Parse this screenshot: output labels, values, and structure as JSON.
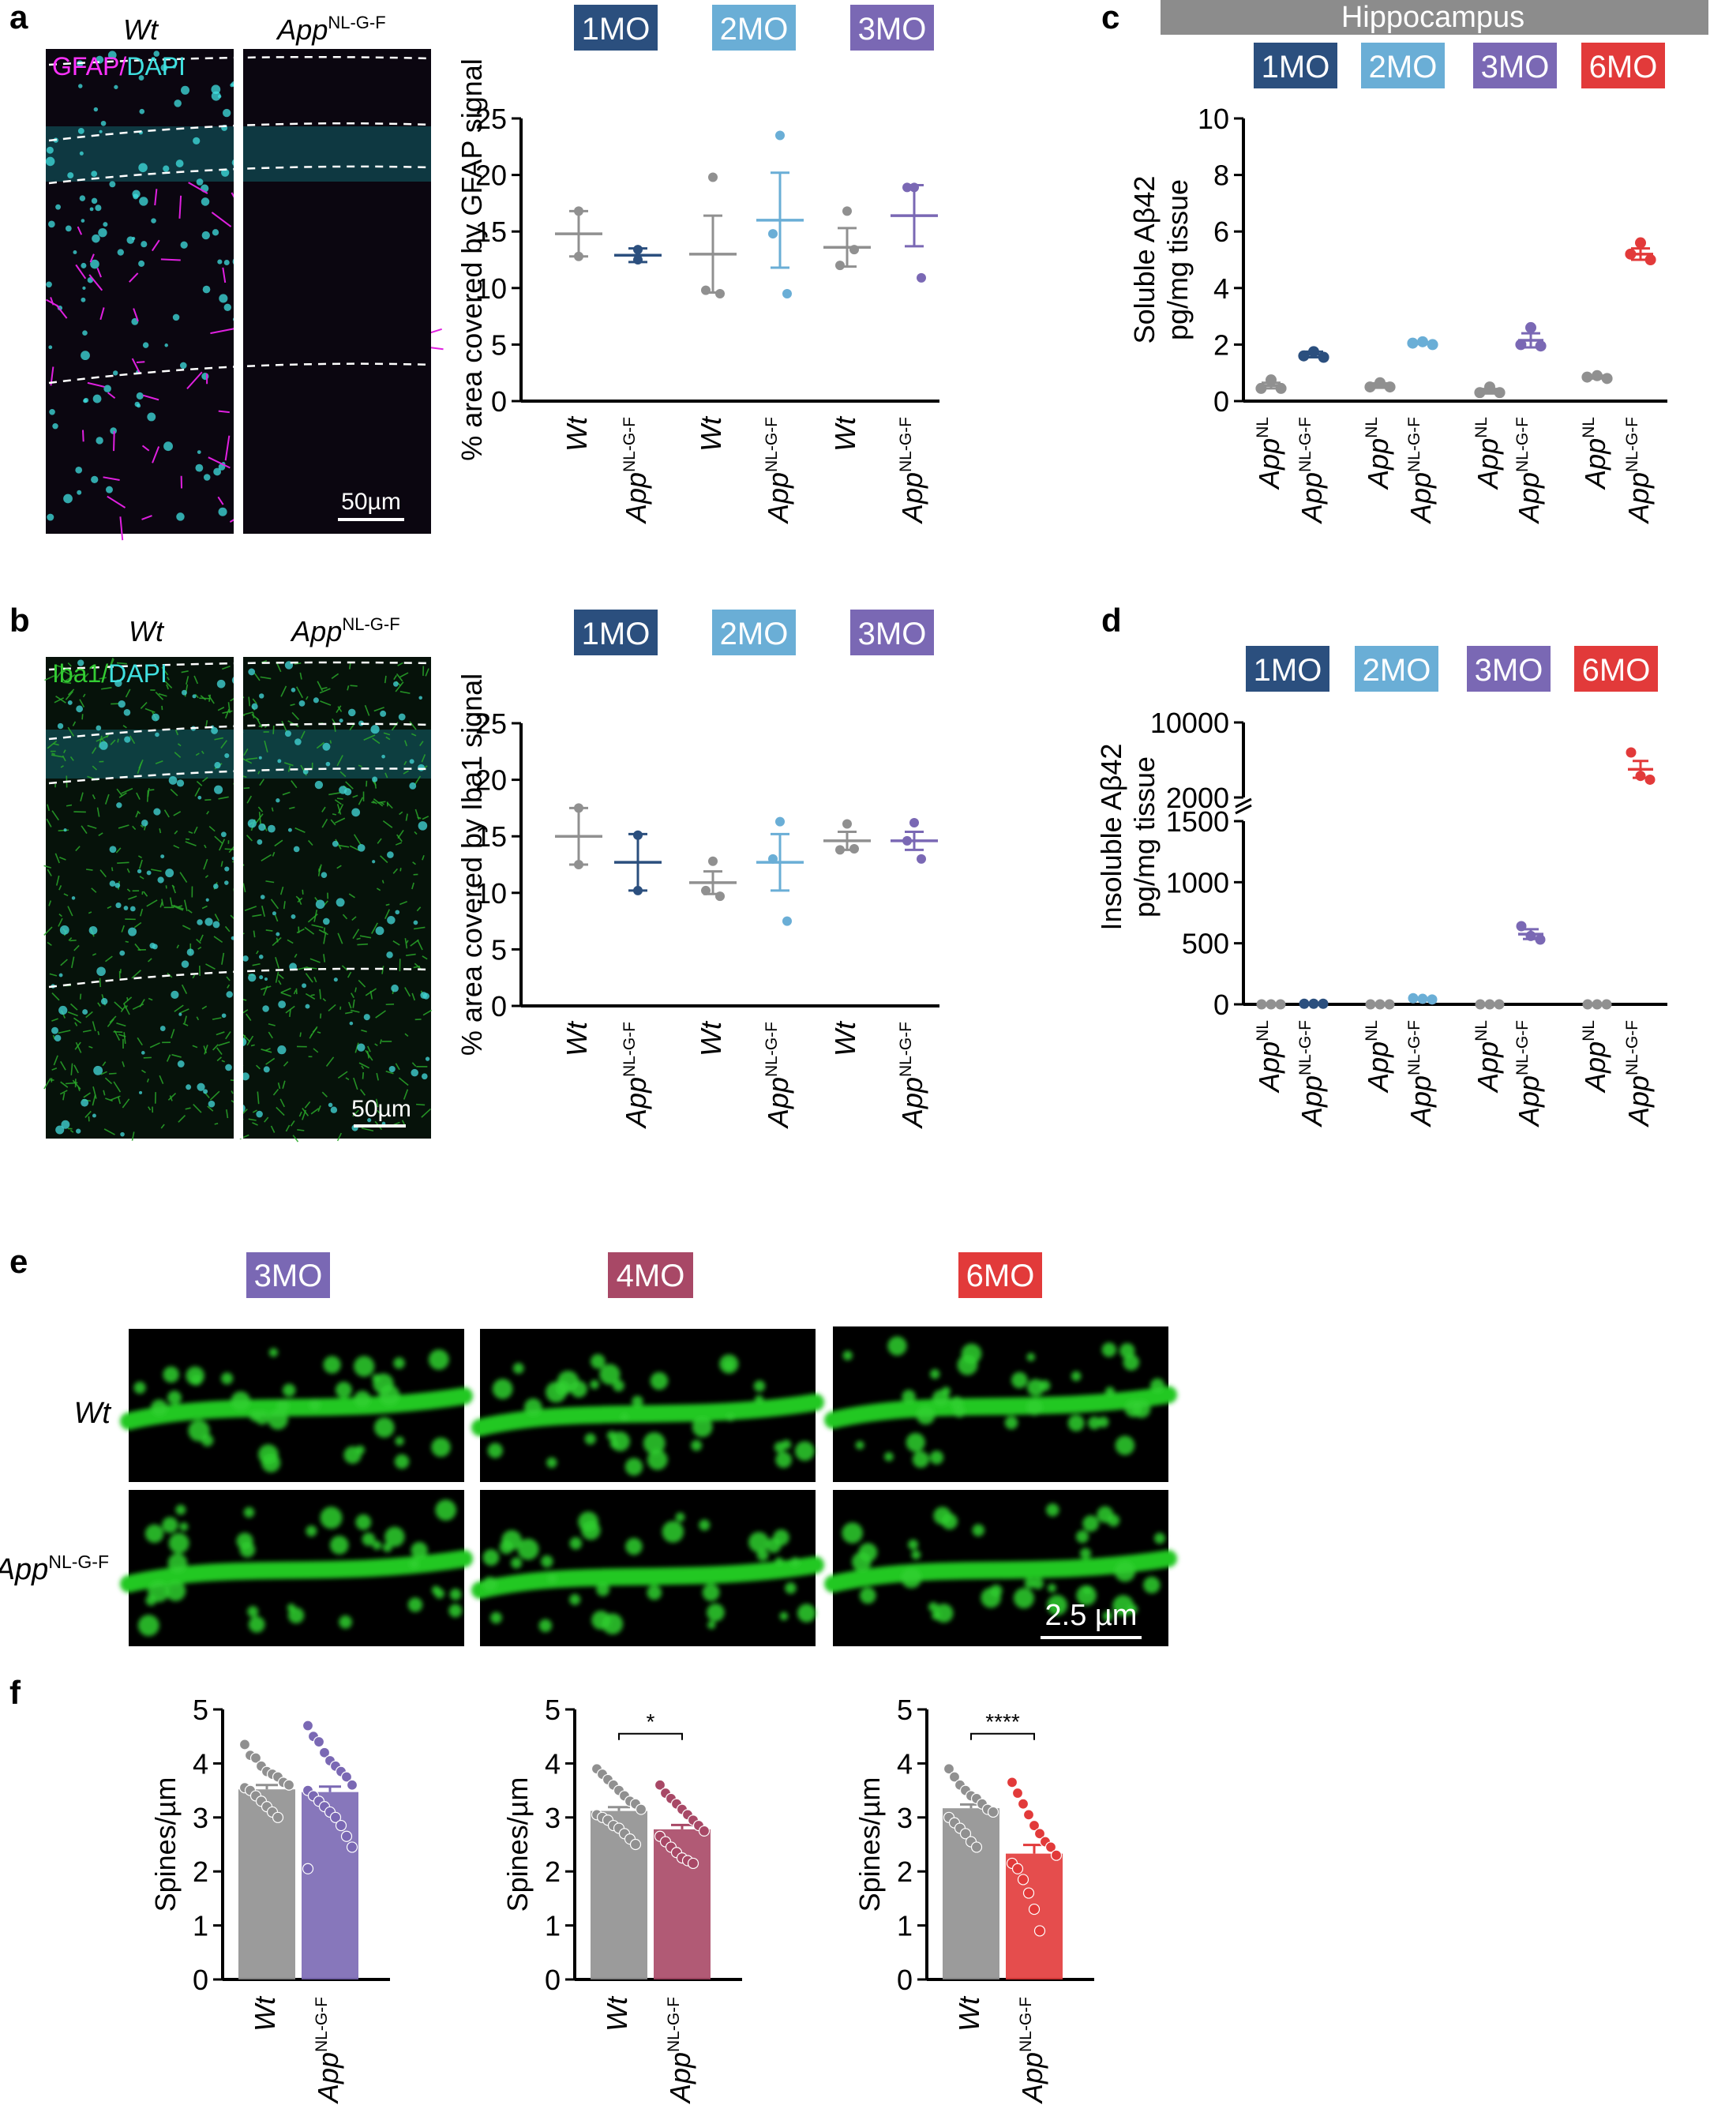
{
  "colors": {
    "mo1": "#2b4f7e",
    "mo2": "#6aaed6",
    "mo3": "#7a68b4",
    "mo4": "#a84866",
    "mo6": "#e23a3a",
    "wt_grey": "#909090",
    "hippo_bar": "#8c8c8c"
  },
  "panel_a": {
    "letter": "a",
    "img_labels": {
      "wt": "Wt",
      "app": "App",
      "app_sup": "NL-G-F"
    },
    "stain": {
      "part1": "GFAP",
      "sep": "/",
      "part2": "DAPI"
    },
    "scale_bar": "50µm"
  },
  "panel_b": {
    "letter": "b",
    "img_labels": {
      "wt": "Wt",
      "app": "App",
      "app_sup": "NL-G-F"
    },
    "stain": {
      "part1": "Iba1",
      "sep": "/",
      "part2": "DAPI"
    },
    "scale_bar": "50µm"
  },
  "panel_c": {
    "letter": "c",
    "header": "Hippocampus"
  },
  "panel_d": {
    "letter": "d"
  },
  "panel_e": {
    "letter": "e",
    "ages": [
      "3MO",
      "4MO",
      "6MO"
    ],
    "row_labels": {
      "wt": "Wt",
      "app": "App",
      "app_sup": "NL-G-F"
    },
    "scale_bar": "2.5 µm"
  },
  "panel_f": {
    "letter": "f"
  },
  "chart_data": [
    {
      "id": "a_chart",
      "type": "scatter",
      "ylabel": "% area covered by GFAP signal",
      "ylim": [
        0,
        25
      ],
      "yticks": [
        0,
        5,
        10,
        15,
        20,
        25
      ],
      "legend": [
        "1MO",
        "2MO",
        "3MO"
      ],
      "categories": [
        "Wt",
        "App|NL-G-F",
        "Wt",
        "App|NL-G-F",
        "Wt",
        "App|NL-G-F"
      ],
      "series": [
        {
          "name": "1MO",
          "group": "Wt",
          "mean": 14.8,
          "sem": 2.0,
          "points": [
            16.8,
            12.8
          ]
        },
        {
          "name": "1MO",
          "group": "App NL-G-F",
          "mean": 12.9,
          "sem": 0.6,
          "points": [
            13.4,
            12.5
          ]
        },
        {
          "name": "2MO",
          "group": "Wt",
          "mean": 13.0,
          "sem": 3.4,
          "points": [
            19.8,
            9.8,
            9.5
          ]
        },
        {
          "name": "2MO",
          "group": "App NL-G-F",
          "mean": 16.0,
          "sem": 4.2,
          "points": [
            23.5,
            14.8,
            9.5
          ]
        },
        {
          "name": "3MO",
          "group": "Wt",
          "mean": 13.6,
          "sem": 1.7,
          "points": [
            16.8,
            12.0,
            13.4
          ]
        },
        {
          "name": "3MO",
          "group": "App NL-G-F",
          "mean": 16.4,
          "sem": 2.7,
          "points": [
            18.9,
            18.9,
            10.9
          ]
        }
      ]
    },
    {
      "id": "b_chart",
      "type": "scatter",
      "ylabel": "% area covered by Iba1 signal",
      "ylim": [
        0,
        25
      ],
      "yticks": [
        0,
        5,
        10,
        15,
        20,
        25
      ],
      "legend": [
        "1MO",
        "2MO",
        "3MO"
      ],
      "categories": [
        "Wt",
        "App|NL-G-F",
        "Wt",
        "App|NL-G-F",
        "Wt",
        "App|NL-G-F"
      ],
      "series": [
        {
          "name": "1MO",
          "group": "Wt",
          "mean": 15.0,
          "sem": 2.5,
          "points": [
            17.5,
            12.5
          ]
        },
        {
          "name": "1MO",
          "group": "App NL-G-F",
          "mean": 12.7,
          "sem": 2.5,
          "points": [
            15.1,
            10.2
          ]
        },
        {
          "name": "2MO",
          "group": "Wt",
          "mean": 10.9,
          "sem": 1.0,
          "points": [
            12.8,
            10.2,
            9.7
          ]
        },
        {
          "name": "2MO",
          "group": "App NL-G-F",
          "mean": 12.7,
          "sem": 2.5,
          "points": [
            16.3,
            13.0,
            7.5
          ]
        },
        {
          "name": "3MO",
          "group": "Wt",
          "mean": 14.6,
          "sem": 0.8,
          "points": [
            16.1,
            13.8,
            13.9
          ]
        },
        {
          "name": "3MO",
          "group": "App NL-G-F",
          "mean": 14.6,
          "sem": 0.8,
          "points": [
            16.2,
            14.6,
            13.0
          ]
        }
      ]
    },
    {
      "id": "c_chart",
      "type": "scatter",
      "title": "Hippocampus",
      "ylabel": "Soluble Aβ42 pg/mg tissue",
      "ylabel_lines": [
        "Soluble Aβ42",
        "pg/mg tissue"
      ],
      "ylim": [
        0,
        10
      ],
      "yticks": [
        0,
        2,
        4,
        6,
        8,
        10
      ],
      "legend": [
        "1MO",
        "2MO",
        "3MO",
        "6MO"
      ],
      "categories": [
        "App|NL",
        "App|NL-G-F",
        "App|NL",
        "App|NL-G-F",
        "App|NL",
        "App|NL-G-F",
        "App|NL",
        "App|NL-G-F"
      ],
      "series": [
        {
          "name": "1MO",
          "group": "App NL",
          "mean": 0.55,
          "sem": 0.1,
          "points": [
            0.75,
            0.45,
            0.45
          ]
        },
        {
          "name": "1MO",
          "group": "App NL-G-F",
          "mean": 1.65,
          "sem": 0.1,
          "points": [
            1.75,
            1.6,
            1.55
          ]
        },
        {
          "name": "2MO",
          "group": "App NL",
          "mean": 0.55,
          "sem": 0.08,
          "points": [
            0.65,
            0.5,
            0.5
          ]
        },
        {
          "name": "2MO",
          "group": "App NL-G-F",
          "mean": 2.05,
          "sem": 0.03,
          "points": [
            2.1,
            2.05,
            2.0
          ]
        },
        {
          "name": "3MO",
          "group": "App NL",
          "mean": 0.35,
          "sem": 0.08,
          "points": [
            0.5,
            0.3,
            0.3
          ]
        },
        {
          "name": "3MO",
          "group": "App NL-G-F",
          "mean": 2.15,
          "sem": 0.25,
          "points": [
            2.6,
            2.0,
            1.95
          ]
        },
        {
          "name": "6MO",
          "group": "App NL",
          "mean": 0.85,
          "sem": 0.05,
          "points": [
            0.9,
            0.85,
            0.8
          ]
        },
        {
          "name": "6MO",
          "group": "App NL-G-F",
          "mean": 5.2,
          "sem": 0.2,
          "points": [
            5.6,
            5.2,
            5.0
          ]
        }
      ]
    },
    {
      "id": "d_chart",
      "type": "scatter",
      "ylabel": "Insoluble Aβ42 pg/mg tissue",
      "ylabel_lines": [
        "Insoluble  Aβ42",
        "pg/mg tissue"
      ],
      "ylim_lower": [
        0,
        1500
      ],
      "ylim_upper": [
        2000,
        10000
      ],
      "yticks_lower": [
        0,
        500,
        1000,
        1500
      ],
      "yticks_upper": [
        2000,
        10000
      ],
      "legend": [
        "1MO",
        "2MO",
        "3MO",
        "6MO"
      ],
      "categories": [
        "App|NL",
        "App|NL-G-F",
        "App|NL",
        "App|NL-G-F",
        "App|NL",
        "App|NL-G-F",
        "App|NL",
        "App|NL-G-F"
      ],
      "series": [
        {
          "name": "1MO",
          "group": "App NL",
          "mean": 0,
          "sem": 0,
          "points": [
            0,
            0,
            0
          ]
        },
        {
          "name": "1MO",
          "group": "App NL-G-F",
          "mean": 5,
          "sem": 1,
          "points": [
            5,
            5,
            5
          ]
        },
        {
          "name": "2MO",
          "group": "App NL",
          "mean": 0,
          "sem": 0,
          "points": [
            0,
            0,
            0
          ]
        },
        {
          "name": "2MO",
          "group": "App NL-G-F",
          "mean": 45,
          "sem": 5,
          "points": [
            50,
            45,
            40
          ]
        },
        {
          "name": "3MO",
          "group": "App NL",
          "mean": 0,
          "sem": 0,
          "points": [
            0,
            0,
            0
          ]
        },
        {
          "name": "3MO",
          "group": "App NL-G-F",
          "mean": 575,
          "sem": 40,
          "points": [
            640,
            560,
            530
          ]
        },
        {
          "name": "6MO",
          "group": "App NL",
          "mean": 0,
          "sem": 0,
          "points": [
            0,
            0,
            0
          ]
        },
        {
          "name": "6MO",
          "group": "App NL-G-F",
          "mean": 5000,
          "sem": 900,
          "points": [
            6800,
            4300,
            3900
          ]
        }
      ]
    },
    {
      "id": "f_3mo",
      "type": "bar",
      "ylabel": "Spines/µm",
      "ylim": [
        0,
        5
      ],
      "yticks": [
        0,
        1,
        2,
        3,
        4,
        5
      ],
      "categories": [
        "Wt",
        "App|NL-G-F"
      ],
      "values": [
        3.52,
        3.47
      ],
      "sem": [
        0.08,
        0.1
      ],
      "significance": "",
      "points": [
        [
          4.35,
          4.15,
          4.1,
          3.95,
          3.85,
          3.8,
          3.75,
          3.65,
          3.6,
          3.55,
          3.5,
          3.4,
          3.3,
          3.2,
          3.1,
          3.0
        ],
        [
          4.7,
          4.5,
          4.4,
          4.2,
          4.05,
          3.95,
          3.85,
          3.75,
          3.6,
          3.5,
          3.4,
          3.3,
          3.2,
          3.1,
          3.0,
          2.85,
          2.65,
          2.45,
          2.05
        ]
      ]
    },
    {
      "id": "f_4mo",
      "type": "bar",
      "ylabel": "Spines/µm",
      "ylim": [
        0,
        5
      ],
      "yticks": [
        0,
        1,
        2,
        3,
        4,
        5
      ],
      "categories": [
        "Wt",
        "App|NL-G-F"
      ],
      "values": [
        3.12,
        2.78
      ],
      "sem": [
        0.07,
        0.08
      ],
      "significance": "*",
      "points": [
        [
          3.9,
          3.8,
          3.7,
          3.6,
          3.5,
          3.4,
          3.3,
          3.25,
          3.15,
          3.05,
          3.0,
          2.95,
          2.85,
          2.8,
          2.7,
          2.6,
          2.5
        ],
        [
          3.6,
          3.45,
          3.35,
          3.25,
          3.15,
          3.05,
          2.95,
          2.85,
          2.75,
          2.65,
          2.55,
          2.45,
          2.35,
          2.25,
          2.2,
          2.15
        ]
      ]
    },
    {
      "id": "f_6mo",
      "type": "bar",
      "ylabel": "Spines/µm",
      "ylim": [
        0,
        5
      ],
      "yticks": [
        0,
        1,
        2,
        3,
        4,
        5
      ],
      "categories": [
        "Wt",
        "App|NL-G-F"
      ],
      "values": [
        3.17,
        2.33
      ],
      "sem": [
        0.07,
        0.16
      ],
      "significance": "****",
      "points": [
        [
          3.9,
          3.75,
          3.6,
          3.5,
          3.4,
          3.35,
          3.25,
          3.15,
          3.1,
          3.0,
          2.9,
          2.8,
          2.7,
          2.55,
          2.45
        ],
        [
          3.65,
          3.45,
          3.25,
          3.05,
          2.85,
          2.7,
          2.55,
          2.45,
          2.3,
          2.15,
          2.05,
          1.85,
          1.6,
          1.3,
          0.9
        ]
      ]
    }
  ]
}
